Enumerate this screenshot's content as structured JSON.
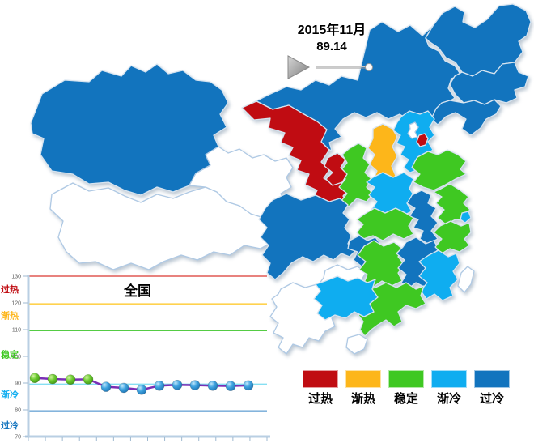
{
  "timeline": {
    "period": "2015年11月",
    "value": "89.14"
  },
  "legend": {
    "items": [
      {
        "id": "guore",
        "label": "过热",
        "color": "#C00C12"
      },
      {
        "id": "jianre",
        "label": "渐热",
        "color": "#FDB61A"
      },
      {
        "id": "wending",
        "label": "稳定",
        "color": "#3FC822"
      },
      {
        "id": "jianleng",
        "label": "渐冷",
        "color": "#0FADF0"
      },
      {
        "id": "guoleng",
        "label": "过冷",
        "color": "#1274BE"
      }
    ],
    "no_data_color": "#FFFFFF",
    "border_color": "#D7E4F0",
    "no_data_border_color": "#AFC9E4"
  },
  "chart_data": [
    {
      "type": "heatmap",
      "subtype": "china-province-choropleth",
      "categories": [
        "过热",
        "渐热",
        "稳定",
        "渐冷",
        "过冷"
      ],
      "provinces": [
        {
          "id": "xinjiang",
          "name": "新疆",
          "status": "过冷"
        },
        {
          "id": "xizang",
          "name": "西藏",
          "status": "无数据"
        },
        {
          "id": "qinghai",
          "name": "青海",
          "status": "无数据"
        },
        {
          "id": "gansu",
          "name": "甘肃",
          "status": "过热"
        },
        {
          "id": "neimenggu",
          "name": "内蒙古",
          "status": "过冷"
        },
        {
          "id": "heilongjiang",
          "name": "黑龙江",
          "status": "过冷"
        },
        {
          "id": "jilin",
          "name": "吉林",
          "status": "过冷"
        },
        {
          "id": "liaoning",
          "name": "辽宁",
          "status": "过冷"
        },
        {
          "id": "hebei",
          "name": "河北",
          "status": "渐冷"
        },
        {
          "id": "beijing",
          "name": "北京",
          "status": "无数据"
        },
        {
          "id": "tianjin",
          "name": "天津",
          "status": "过热"
        },
        {
          "id": "shanxi",
          "name": "山西",
          "status": "渐热"
        },
        {
          "id": "shaanxi",
          "name": "陕西",
          "status": "稳定"
        },
        {
          "id": "ningxia",
          "name": "宁夏",
          "status": "过热"
        },
        {
          "id": "shandong",
          "name": "山东",
          "status": "稳定"
        },
        {
          "id": "henan",
          "name": "河南",
          "status": "渐冷"
        },
        {
          "id": "jiangsu",
          "name": "江苏",
          "status": "稳定"
        },
        {
          "id": "anhui",
          "name": "安徽",
          "status": "过冷"
        },
        {
          "id": "shanghai",
          "name": "上海",
          "status": "渐冷"
        },
        {
          "id": "hubei",
          "name": "湖北",
          "status": "稳定"
        },
        {
          "id": "sichuan",
          "name": "四川",
          "status": "过冷"
        },
        {
          "id": "chongqing",
          "name": "重庆",
          "status": "过冷"
        },
        {
          "id": "guizhou",
          "name": "贵州",
          "status": "无数据"
        },
        {
          "id": "yunnan",
          "name": "云南",
          "status": "无数据"
        },
        {
          "id": "hunan",
          "name": "湖南",
          "status": "稳定"
        },
        {
          "id": "jiangxi",
          "name": "江西",
          "status": "过冷"
        },
        {
          "id": "zhejiang",
          "name": "浙江",
          "status": "稳定"
        },
        {
          "id": "fujian",
          "name": "福建",
          "status": "渐冷"
        },
        {
          "id": "guangdong",
          "name": "广东",
          "status": "稳定"
        },
        {
          "id": "guangxi",
          "name": "广西",
          "status": "渐冷"
        },
        {
          "id": "hainan",
          "name": "海南",
          "status": "无数据"
        },
        {
          "id": "taiwan",
          "name": "台湾",
          "status": "无数据"
        }
      ]
    },
    {
      "type": "line",
      "title": "全国",
      "ylim": [
        70,
        130
      ],
      "yticks": [
        130,
        120,
        110,
        100,
        90,
        80,
        70
      ],
      "grid": false,
      "x_tick_count": 15,
      "values": [
        91.9,
        91.5,
        91.3,
        91.4,
        88.6,
        88.2,
        87.5,
        89.0,
        89.3,
        89.2,
        89.0,
        88.9,
        89.14
      ],
      "point_zones": [
        "稳定",
        "稳定",
        "稳定",
        "稳定",
        "渐冷",
        "渐冷",
        "渐冷",
        "渐冷",
        "渐冷",
        "渐冷",
        "渐冷",
        "渐冷",
        "渐冷"
      ],
      "line_color": "#7A2FB5",
      "marker_colors": {
        "稳定": "#55BE27",
        "渐冷": "#2F9FDE"
      },
      "thresholds": [
        {
          "value": 130.0,
          "color": "#E8827E"
        },
        {
          "value": 119.6,
          "color": "#FFD24F"
        },
        {
          "value": 109.7,
          "color": "#55CC44"
        },
        {
          "value": 89.5,
          "color": "#86DFF2"
        },
        {
          "value": 79.5,
          "color": "#3A87C8"
        }
      ],
      "zone_labels": [
        {
          "label": "过热",
          "color": "#C00C12",
          "y": 125.2
        },
        {
          "label": "渐热",
          "color": "#FDB61A",
          "y": 115.3
        },
        {
          "label": "稳定",
          "color": "#3FC822",
          "y": 100.8
        },
        {
          "label": "渐冷",
          "color": "#0FADF0",
          "y": 85.7
        },
        {
          "label": "过冷",
          "color": "#1274BE",
          "y": 74.3
        }
      ]
    }
  ]
}
